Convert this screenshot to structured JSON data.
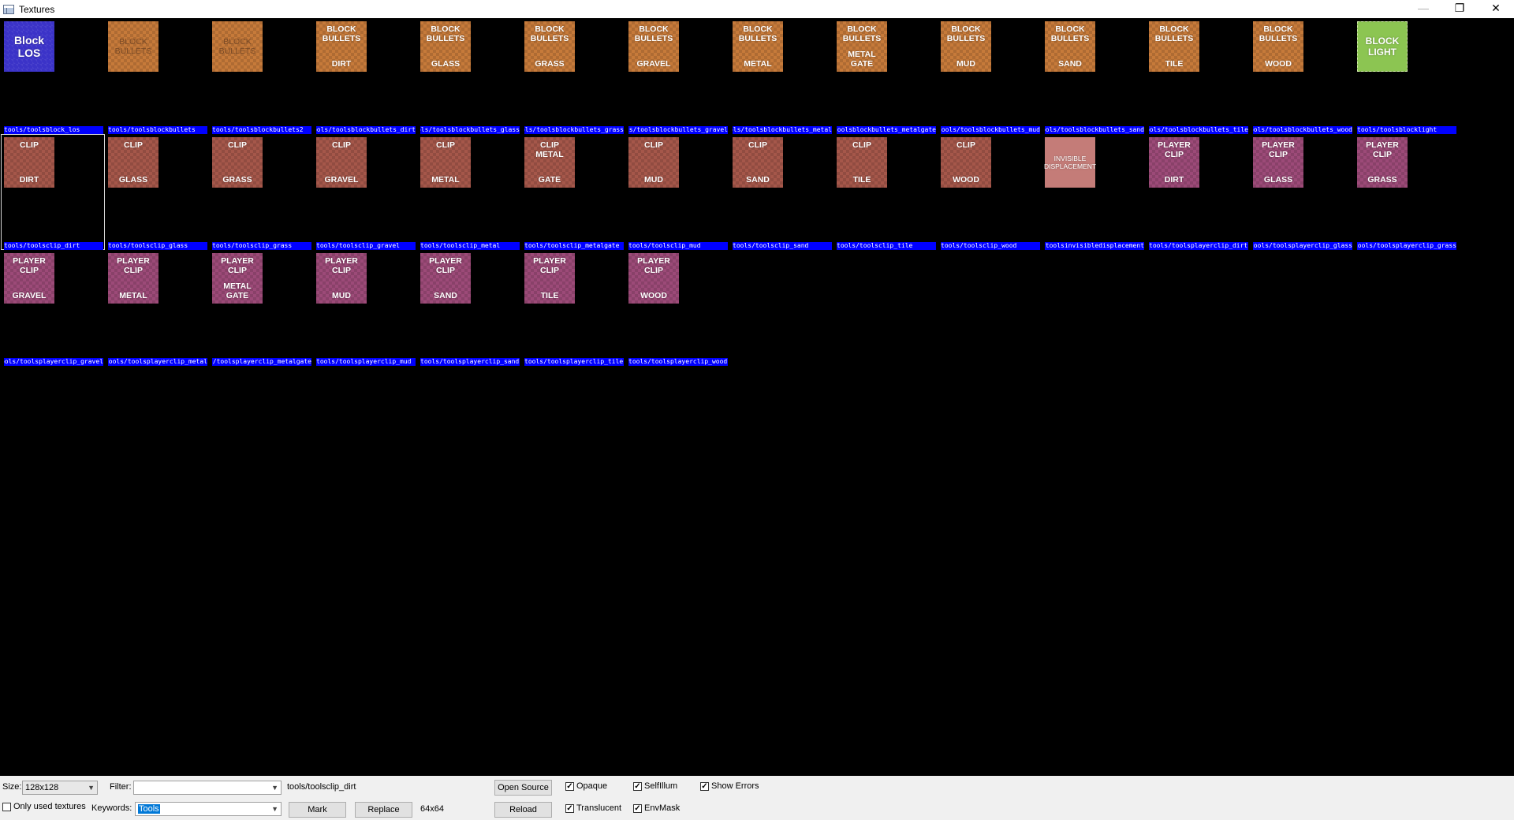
{
  "window": {
    "title": "Textures",
    "min_glyph": "—",
    "restore_glyph": "❐",
    "close_glyph": "✕"
  },
  "textures": [
    {
      "lines": [
        "Block",
        "LOS"
      ],
      "style": "blue",
      "layout": "centered",
      "path": "tools/toolsblock_los"
    },
    {
      "lines": [
        "BLOCK",
        "BULLETS"
      ],
      "style": "orange-faint",
      "layout": "centered",
      "path": "tools/toolsblockbullets"
    },
    {
      "lines": [
        "BLOCK",
        "BULLETS"
      ],
      "style": "orange-faint",
      "layout": "centered",
      "path": "tools/toolsblockbullets2"
    },
    {
      "lines": [
        "BLOCK",
        "BULLETS",
        "DIRT"
      ],
      "style": "orange",
      "layout": "split",
      "path": "tools/toolsblockbullets_dirt"
    },
    {
      "lines": [
        "BLOCK",
        "BULLETS",
        "GLASS"
      ],
      "style": "orange",
      "layout": "split",
      "path": "tools/toolsblockbullets_glass"
    },
    {
      "lines": [
        "BLOCK",
        "BULLETS",
        "GRASS"
      ],
      "style": "orange",
      "layout": "split",
      "path": "tools/toolsblockbullets_grass"
    },
    {
      "lines": [
        "BLOCK",
        "BULLETS",
        "GRAVEL"
      ],
      "style": "orange",
      "layout": "split",
      "path": "tools/toolsblockbullets_gravel"
    },
    {
      "lines": [
        "BLOCK",
        "BULLETS",
        "METAL"
      ],
      "style": "orange",
      "layout": "split",
      "path": "tools/toolsblockbullets_metal"
    },
    {
      "lines": [
        "BLOCK",
        "BULLETS",
        "METAL",
        "GATE"
      ],
      "style": "orange",
      "layout": "split",
      "path": "tools/toolsblockbullets_metalgate"
    },
    {
      "lines": [
        "BLOCK",
        "BULLETS",
        "MUD"
      ],
      "style": "orange",
      "layout": "split",
      "path": "tools/toolsblockbullets_mud"
    },
    {
      "lines": [
        "BLOCK",
        "BULLETS",
        "SAND"
      ],
      "style": "orange",
      "layout": "split",
      "path": "tools/toolsblockbullets_sand"
    },
    {
      "lines": [
        "BLOCK",
        "BULLETS",
        "TILE"
      ],
      "style": "orange",
      "layout": "split",
      "path": "tools/toolsblockbullets_tile"
    },
    {
      "lines": [
        "BLOCK",
        "BULLETS",
        "WOOD"
      ],
      "style": "orange",
      "layout": "split",
      "path": "tools/toolsblockbullets_wood"
    },
    {
      "lines": [
        "BLOCK",
        "LIGHT"
      ],
      "style": "green",
      "layout": "centered",
      "path": "tools/toolsblocklight"
    },
    {
      "lines": [
        "CLIP",
        "DIRT"
      ],
      "style": "brown",
      "layout": "split",
      "path": "tools/toolsclip_dirt",
      "selected": true
    },
    {
      "lines": [
        "CLIP",
        "GLASS"
      ],
      "style": "brown",
      "layout": "split",
      "path": "tools/toolsclip_glass"
    },
    {
      "lines": [
        "CLIP",
        "GRASS"
      ],
      "style": "brown",
      "layout": "split",
      "path": "tools/toolsclip_grass"
    },
    {
      "lines": [
        "CLIP",
        "GRAVEL"
      ],
      "style": "brown",
      "layout": "split",
      "path": "tools/toolsclip_gravel"
    },
    {
      "lines": [
        "CLIP",
        "METAL"
      ],
      "style": "brown",
      "layout": "split",
      "path": "tools/toolsclip_metal"
    },
    {
      "lines": [
        "CLIP",
        "METAL",
        "GATE"
      ],
      "style": "brown",
      "layout": "split",
      "path": "tools/toolsclip_metalgate"
    },
    {
      "lines": [
        "CLIP",
        "MUD"
      ],
      "style": "brown",
      "layout": "split",
      "path": "tools/toolsclip_mud"
    },
    {
      "lines": [
        "CLIP",
        "SAND"
      ],
      "style": "brown",
      "layout": "split",
      "path": "tools/toolsclip_sand"
    },
    {
      "lines": [
        "CLIP",
        "TILE"
      ],
      "style": "brown",
      "layout": "split",
      "path": "tools/toolsclip_tile"
    },
    {
      "lines": [
        "CLIP",
        "WOOD"
      ],
      "style": "brown",
      "layout": "split",
      "path": "tools/toolsclip_wood"
    },
    {
      "lines": [
        "INVISIBLE",
        "DISPLACEMENT"
      ],
      "style": "pink",
      "layout": "centered",
      "path": "tools/toolsinvisibledisplacement"
    },
    {
      "lines": [
        "PLAYER",
        "CLIP",
        "DIRT"
      ],
      "style": "purple",
      "layout": "split",
      "path": "tools/toolsplayerclip_dirt"
    },
    {
      "lines": [
        "PLAYER",
        "CLIP",
        "GLASS"
      ],
      "style": "purple",
      "layout": "split",
      "path": "tools/toolsplayerclip_glass"
    },
    {
      "lines": [
        "PLAYER",
        "CLIP",
        "GRASS"
      ],
      "style": "purple",
      "layout": "split",
      "path": "tools/toolsplayerclip_grass"
    },
    {
      "lines": [
        "PLAYER",
        "CLIP",
        "GRAVEL"
      ],
      "style": "purple",
      "layout": "split",
      "path": "tools/toolsplayerclip_gravel"
    },
    {
      "lines": [
        "PLAYER",
        "CLIP",
        "METAL"
      ],
      "style": "purple",
      "layout": "split",
      "path": "tools/toolsplayerclip_metal"
    },
    {
      "lines": [
        "PLAYER",
        "CLIP",
        "METAL",
        "GATE"
      ],
      "style": "purple",
      "layout": "split",
      "path": "tools/toolsplayerclip_metalgate"
    },
    {
      "lines": [
        "PLAYER",
        "CLIP",
        "MUD"
      ],
      "style": "purple",
      "layout": "split",
      "path": "tools/toolsplayerclip_mud"
    },
    {
      "lines": [
        "PLAYER",
        "CLIP",
        "SAND"
      ],
      "style": "purple",
      "layout": "split",
      "path": "tools/toolsplayerclip_sand"
    },
    {
      "lines": [
        "PLAYER",
        "CLIP",
        "TILE"
      ],
      "style": "purple",
      "layout": "split",
      "path": "tools/toolsplayerclip_tile"
    },
    {
      "lines": [
        "PLAYER",
        "CLIP",
        "WOOD"
      ],
      "style": "purple",
      "layout": "split",
      "path": "tools/toolsplayerclip_wood"
    }
  ],
  "controls": {
    "size_label": "Size:",
    "size_value": "128x128",
    "filter_label": "Filter:",
    "filter_value": "",
    "selected_path": "tools/toolsclip_dirt",
    "open_source_label": "Open Source",
    "reload_label": "Reload",
    "only_used_label": "Only used textures",
    "only_used_checked": false,
    "keywords_label": "Keywords:",
    "keywords_value": "Tools",
    "mark_label": "Mark",
    "replace_label": "Replace",
    "selected_size": "64x64",
    "opaque_label": "Opaque",
    "opaque_checked": true,
    "selfillum_label": "SelfIllum",
    "selfillum_checked": true,
    "show_errors_label": "Show Errors",
    "show_errors_checked": true,
    "translucent_label": "Translucent",
    "translucent_checked": true,
    "envmask_label": "EnvMask",
    "envmask_checked": true
  },
  "colors": {
    "label_bg": "#0000ff",
    "grid_bg": "#000000",
    "panel_bg": "#f0f0f0"
  }
}
